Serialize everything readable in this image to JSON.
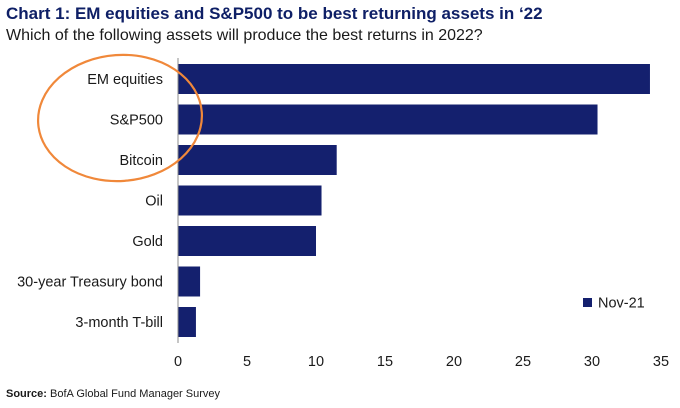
{
  "header": {
    "title": "Chart 1:  EM equities and S&P500 to be best returning assets in ‘22",
    "subtitle": "Which of the following assets will produce the best returns in 2022?"
  },
  "footer": {
    "source_label": "Source:",
    "source_text": "BofA Global Fund Manager Survey"
  },
  "colors": {
    "bar": "#14206e",
    "highlight_circle": "#f0883a",
    "axis": "#8c8c8c"
  },
  "chart_data": {
    "type": "bar",
    "orientation": "horizontal",
    "categories": [
      "EM equities",
      "S&P500",
      "Bitcoin",
      "Oil",
      "Gold",
      "30-year Treasury bond",
      "3-month T-bill"
    ],
    "series": [
      {
        "name": "Nov-21",
        "values": [
          34.2,
          30.4,
          11.5,
          10.4,
          10.0,
          1.6,
          1.3
        ]
      }
    ],
    "xticks": [
      "0",
      "5",
      "10",
      "15",
      "20",
      "25",
      "30",
      "35"
    ],
    "xlim": [
      0,
      35
    ],
    "grid": false,
    "legend_position": "bottom-right",
    "annotation": "orange circle highlighting EM equities, S&P500 and Bitcoin"
  }
}
